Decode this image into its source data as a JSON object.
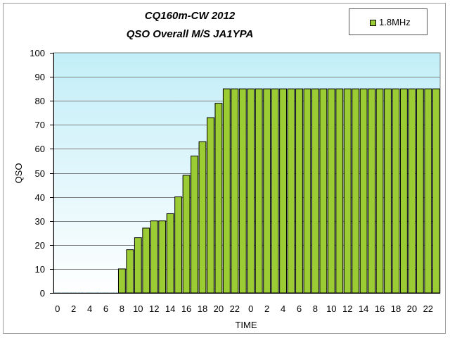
{
  "chart_data": {
    "type": "bar",
    "title": "CQ160m-CW  2012",
    "subtitle": "QSO Overall M/S JA1YPA",
    "xlabel": "TIME",
    "ylabel": "QSO",
    "ylim": [
      0,
      100
    ],
    "yticks": [
      "0",
      "10",
      "20",
      "30",
      "40",
      "50",
      "60",
      "70",
      "80",
      "90",
      "100"
    ],
    "categories": [
      "0",
      "1",
      "2",
      "3",
      "4",
      "5",
      "6",
      "7",
      "8",
      "9",
      "10",
      "11",
      "12",
      "13",
      "14",
      "15",
      "16",
      "17",
      "18",
      "19",
      "20",
      "21",
      "22",
      "23",
      "0",
      "1",
      "2",
      "3",
      "4",
      "5",
      "6",
      "7",
      "8",
      "9",
      "10",
      "11",
      "12",
      "13",
      "14",
      "15",
      "16",
      "17",
      "18",
      "19",
      "20",
      "21",
      "22",
      "23"
    ],
    "xtick_labels": [
      "0",
      "2",
      "4",
      "6",
      "8",
      "10",
      "12",
      "14",
      "16",
      "18",
      "20",
      "22",
      "0",
      "2",
      "4",
      "6",
      "8",
      "10",
      "12",
      "14",
      "16",
      "18",
      "20",
      "22"
    ],
    "series": [
      {
        "name": "1.8MHz",
        "color": "#9bcc33",
        "values": [
          0,
          0,
          0,
          0,
          0,
          0,
          0,
          0,
          10,
          18,
          23,
          27,
          30,
          30,
          33,
          40,
          49,
          57,
          63,
          73,
          79,
          85,
          85,
          85,
          85,
          85,
          85,
          85,
          85,
          85,
          85,
          85,
          85,
          85,
          85,
          85,
          85,
          85,
          85,
          85,
          85,
          85,
          85,
          85,
          85,
          85,
          85,
          85
        ]
      }
    ],
    "plot_background": "#d8f4fb",
    "grid": true,
    "legend_position": "top-right"
  }
}
